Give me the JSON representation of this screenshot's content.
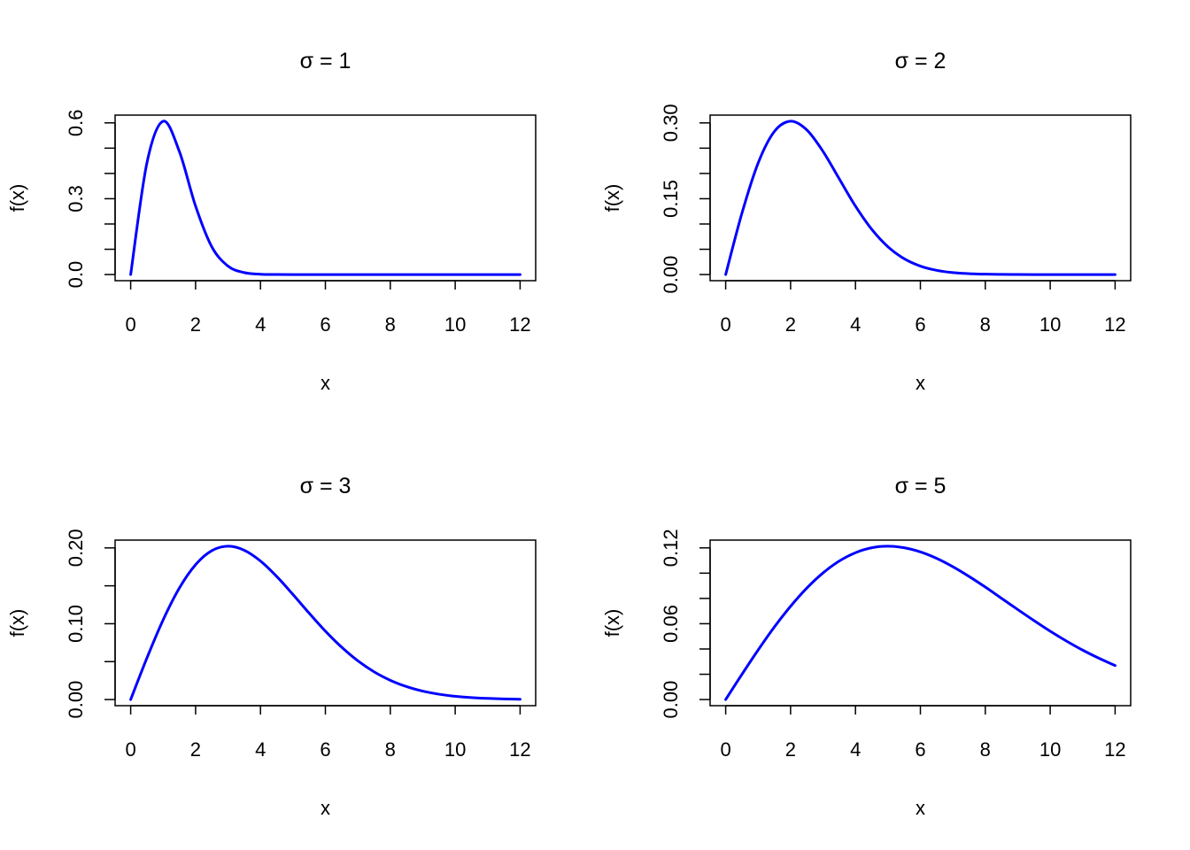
{
  "chart_data": [
    {
      "type": "line",
      "title": "σ = 1",
      "xlabel": "x",
      "ylabel": "f(x)",
      "xlim": [
        0,
        12
      ],
      "ylim": [
        0,
        0.6065
      ],
      "xticks": [
        0,
        2,
        4,
        6,
        8,
        10,
        12
      ],
      "xtick_labels": [
        "0",
        "2",
        "4",
        "6",
        "8",
        "10",
        "12"
      ],
      "yticks": [
        0,
        0.1,
        0.2,
        0.3,
        0.4,
        0.5,
        0.6
      ],
      "ytick_labels": {
        "0": "0.0",
        "3": "0.3",
        "6": "0.6"
      },
      "color": "#0000ff",
      "x": [
        0,
        0.5,
        1,
        1.5,
        2,
        2.5,
        3,
        3.5,
        4,
        4.5,
        5,
        5.5,
        6,
        6.5,
        7,
        7.5,
        8,
        8.5,
        9,
        9.5,
        10,
        10.5,
        11,
        11.5,
        12
      ],
      "y": [
        0,
        0.4412,
        0.6065,
        0.487,
        0.2707,
        0.1098,
        0.0333,
        0.0077,
        0.0013,
        0.0002,
        0,
        0,
        0,
        0,
        0,
        0,
        0,
        0,
        0,
        0,
        0,
        0,
        0,
        0,
        0
      ]
    },
    {
      "type": "line",
      "title": "σ = 2",
      "xlabel": "x",
      "ylabel": "f(x)",
      "xlim": [
        0,
        12
      ],
      "ylim": [
        0,
        0.3033
      ],
      "xticks": [
        0,
        2,
        4,
        6,
        8,
        10,
        12
      ],
      "xtick_labels": [
        "0",
        "2",
        "4",
        "6",
        "8",
        "10",
        "12"
      ],
      "yticks": [
        0,
        0.05,
        0.1,
        0.15,
        0.2,
        0.25,
        0.3
      ],
      "ytick_labels": {
        "0": "0.00",
        "3": "0.15",
        "6": "0.30"
      },
      "color": "#0000ff",
      "x": [
        0,
        0.5,
        1,
        1.5,
        2,
        2.5,
        3,
        3.5,
        4,
        4.5,
        5,
        5.5,
        6,
        6.5,
        7,
        7.5,
        8,
        8.5,
        9,
        9.5,
        10,
        10.5,
        11,
        11.5,
        12
      ],
      "y": [
        0,
        0.1212,
        0.2206,
        0.283,
        0.3033,
        0.2861,
        0.2435,
        0.1893,
        0.1353,
        0.0895,
        0.0549,
        0.0313,
        0.0167,
        0.0083,
        0.0038,
        0.0017,
        0.0007,
        0.0003,
        0.0001,
        0,
        0,
        0,
        0,
        0,
        0
      ]
    },
    {
      "type": "line",
      "title": "σ = 3",
      "xlabel": "x",
      "ylabel": "f(x)",
      "xlim": [
        0,
        12
      ],
      "ylim": [
        0,
        0.2022
      ],
      "xticks": [
        0,
        2,
        4,
        6,
        8,
        10,
        12
      ],
      "xtick_labels": [
        "0",
        "2",
        "4",
        "6",
        "8",
        "10",
        "12"
      ],
      "yticks": [
        0,
        0.05,
        0.1,
        0.15,
        0.2
      ],
      "ytick_labels": {
        "0": "0.00",
        "2": "0.10",
        "4": "0.20"
      },
      "color": "#0000ff",
      "x": [
        0,
        0.5,
        1,
        1.5,
        2,
        2.5,
        3,
        3.5,
        4,
        4.5,
        5,
        5.5,
        6,
        6.5,
        7,
        7.5,
        8,
        8.5,
        9,
        9.5,
        10,
        10.5,
        11,
        11.5,
        12
      ],
      "y": [
        0,
        0.0548,
        0.1051,
        0.1471,
        0.1779,
        0.1963,
        0.2022,
        0.1969,
        0.1827,
        0.1623,
        0.1386,
        0.1139,
        0.0902,
        0.0691,
        0.0511,
        0.0366,
        0.0254,
        0.0171,
        0.0111,
        0.007,
        0.0043,
        0.0026,
        0.0015,
        0.0008,
        0.0004
      ]
    },
    {
      "type": "line",
      "title": "σ = 5",
      "xlabel": "x",
      "ylabel": "f(x)",
      "xlim": [
        0,
        12
      ],
      "ylim": [
        0,
        0.1213
      ],
      "xticks": [
        0,
        2,
        4,
        6,
        8,
        10,
        12
      ],
      "xtick_labels": [
        "0",
        "2",
        "4",
        "6",
        "8",
        "10",
        "12"
      ],
      "yticks": [
        0,
        0.02,
        0.04,
        0.06,
        0.08,
        0.1,
        0.12
      ],
      "ytick_labels": {
        "0": "0.00",
        "3": "0.06",
        "6": "0.12"
      },
      "color": "#0000ff",
      "x": [
        0,
        0.5,
        1,
        1.5,
        2,
        2.5,
        3,
        3.5,
        4,
        4.5,
        5,
        5.5,
        6,
        6.5,
        7,
        7.5,
        8,
        8.5,
        9,
        9.5,
        10,
        10.5,
        11,
        11.5,
        12
      ],
      "y": [
        0,
        0.0199,
        0.0392,
        0.0574,
        0.0738,
        0.0882,
        0.1002,
        0.1096,
        0.1162,
        0.1201,
        0.1213,
        0.1201,
        0.1168,
        0.1117,
        0.1051,
        0.0974,
        0.089,
        0.0801,
        0.0712,
        0.0625,
        0.0541,
        0.0463,
        0.0391,
        0.0327,
        0.0269
      ]
    }
  ]
}
